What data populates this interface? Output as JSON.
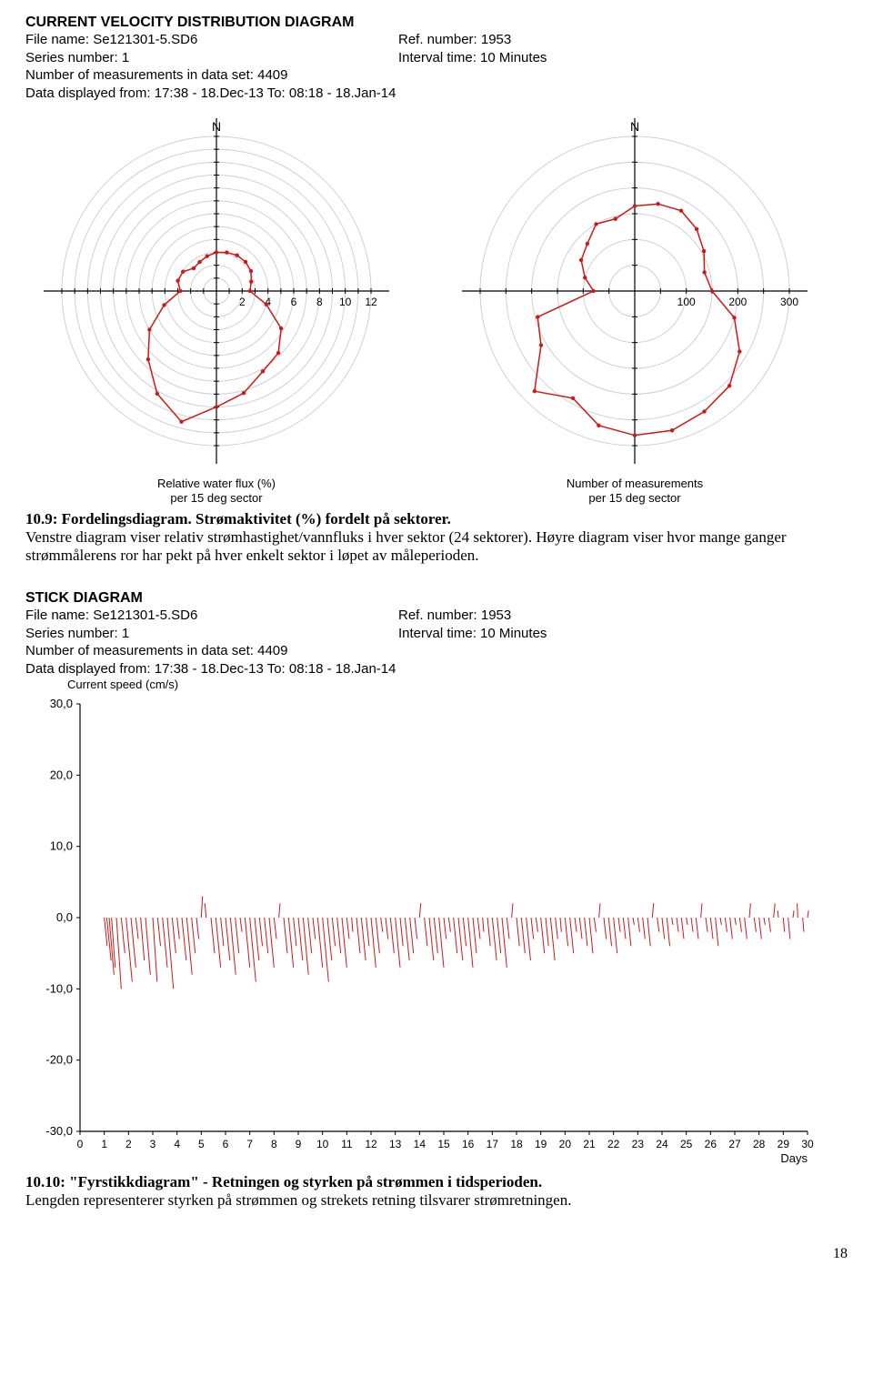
{
  "header1": {
    "title": "CURRENT VELOCITY DISTRIBUTION DIAGRAM",
    "file_label": "File name: ",
    "file_name": "Se121301-5.SD6",
    "series_label": "Series number: ",
    "series_number": "1",
    "meas_label": "Number of measurements in data set: ",
    "meas_count": "4409",
    "disp_label": "Data displayed from: ",
    "disp_from": "17:38 - 18.Dec-13",
    "disp_to_label": "   To: ",
    "disp_to": "08:18 - 18.Jan-14",
    "ref_label": "Ref. number: ",
    "ref_number": "1953",
    "interval_label": "Interval time: ",
    "interval": "10 Minutes"
  },
  "polar_left": {
    "type": "polar-line",
    "north_label": "N",
    "ring_color": "#d0d0d0",
    "axis_color": "#000000",
    "series_color": "#d01818",
    "marker_color": "#d01818",
    "background": "#ffffff",
    "ring_max": 12,
    "ring_step": 1,
    "tick_labels": [
      "2",
      "4",
      "6",
      "8",
      "10",
      "12"
    ],
    "caption_line1": "Relative water flux (%)",
    "caption_line2": "per 15 deg sector",
    "sectors_deg": [
      0,
      15,
      30,
      45,
      60,
      75,
      90,
      105,
      120,
      135,
      150,
      165,
      180,
      195,
      210,
      225,
      240,
      255,
      270,
      285,
      300,
      315,
      330,
      345
    ],
    "radii": [
      3.0,
      3.1,
      3.2,
      3.2,
      3.1,
      2.8,
      2.6,
      4.0,
      5.8,
      6.8,
      7.2,
      8.2,
      9.0,
      10.5,
      9.2,
      7.5,
      6.0,
      4.2,
      2.8,
      3.1,
      3.0,
      2.5,
      2.6,
      2.8
    ]
  },
  "polar_right": {
    "type": "polar-line",
    "north_label": "N",
    "ring_color": "#d0d0d0",
    "axis_color": "#000000",
    "series_color": "#d01818",
    "marker_color": "#d01818",
    "background": "#ffffff",
    "ring_max": 300,
    "ring_step": 50,
    "tick_labels": [
      "100",
      "200",
      "300"
    ],
    "tick_values": [
      100,
      200,
      300
    ],
    "caption_line1": "Number of measurements",
    "caption_line2": "per 15 deg sector",
    "sectors_deg": [
      0,
      15,
      30,
      45,
      60,
      75,
      90,
      105,
      120,
      135,
      150,
      165,
      180,
      195,
      210,
      225,
      240,
      255,
      270,
      285,
      300,
      315,
      330,
      345
    ],
    "radii": [
      165,
      175,
      180,
      170,
      155,
      140,
      150,
      200,
      235,
      260,
      270,
      280,
      280,
      270,
      240,
      275,
      210,
      195,
      80,
      100,
      120,
      130,
      150,
      145
    ]
  },
  "fig1": {
    "num": "10.9: ",
    "title": "Fordelingsdiagram. Strømaktivitet (%) fordelt på sektorer.",
    "body": "Venstre diagram viser relativ strømhastighet/vannfluks i hver sektor (24 sektorer). Høyre diagram viser hvor mange ganger strømmålerens ror har pekt på hver enkelt sektor i løpet av måleperioden."
  },
  "header2": {
    "title": "STICK DIAGRAM",
    "file_label": "File name: ",
    "file_name": "Se121301-5.SD6",
    "series_label": "Series number: ",
    "series_number": "1",
    "meas_label": "Number of measurements in data set: ",
    "meas_count": "4409",
    "disp_label": "Data displayed from: ",
    "disp_from": "17:38 - 18.Dec-13",
    "disp_to_label": "   To: ",
    "disp_to": "08:18 - 18.Jan-14",
    "ref_label": "Ref. number: ",
    "ref_number": "1953",
    "interval_label": "Interval time: ",
    "interval": "10 Minutes"
  },
  "stick": {
    "type": "stick",
    "ylabel": "Current speed (cm/s)",
    "x_axis_label": "Days",
    "y_ticks": [
      "30,0",
      "20,0",
      "10,0",
      "0,0",
      "-10,0",
      "-20,0",
      "-30,0"
    ],
    "y_values": [
      30,
      20,
      10,
      0,
      -10,
      -20,
      -30
    ],
    "x_ticks": [
      "0",
      "1",
      "2",
      "3",
      "4",
      "5",
      "6",
      "7",
      "8",
      "9",
      "10",
      "11",
      "12",
      "13",
      "14",
      "15",
      "16",
      "17",
      "18",
      "19",
      "20",
      "21",
      "22",
      "23",
      "24",
      "25",
      "26",
      "27",
      "28",
      "29",
      "30"
    ],
    "series_color": "#d01818",
    "axis_color": "#000000",
    "background": "#ffffff",
    "ylim": [
      -30,
      30
    ],
    "xlim": [
      0,
      30
    ],
    "sticks": [
      {
        "x": 1.0,
        "dx": 0.12,
        "dy": -4
      },
      {
        "x": 1.1,
        "dx": 0.18,
        "dy": -6
      },
      {
        "x": 1.2,
        "dx": 0.2,
        "dy": -8
      },
      {
        "x": 1.3,
        "dx": 0.15,
        "dy": -7
      },
      {
        "x": 1.5,
        "dx": 0.2,
        "dy": -10
      },
      {
        "x": 1.7,
        "dx": 0.15,
        "dy": -5
      },
      {
        "x": 1.9,
        "dx": 0.25,
        "dy": -9
      },
      {
        "x": 2.1,
        "dx": 0.2,
        "dy": -7
      },
      {
        "x": 2.3,
        "dx": 0.1,
        "dy": -3
      },
      {
        "x": 2.5,
        "dx": 0.15,
        "dy": -6
      },
      {
        "x": 2.7,
        "dx": 0.2,
        "dy": -8
      },
      {
        "x": 3.0,
        "dx": 0.18,
        "dy": -9
      },
      {
        "x": 3.2,
        "dx": 0.12,
        "dy": -4
      },
      {
        "x": 3.4,
        "dx": 0.2,
        "dy": -7
      },
      {
        "x": 3.6,
        "dx": 0.25,
        "dy": -10
      },
      {
        "x": 3.8,
        "dx": 0.15,
        "dy": -5
      },
      {
        "x": 4.0,
        "dx": 0.1,
        "dy": -3
      },
      {
        "x": 4.2,
        "dx": 0.18,
        "dy": -6
      },
      {
        "x": 4.4,
        "dx": 0.22,
        "dy": -8
      },
      {
        "x": 4.6,
        "dx": 0.15,
        "dy": -5
      },
      {
        "x": 4.8,
        "dx": 0.1,
        "dy": -3
      },
      {
        "x": 5.0,
        "dx": 0.05,
        "dy": 3
      },
      {
        "x": 5.2,
        "dx": -0.05,
        "dy": 2
      },
      {
        "x": 5.4,
        "dx": 0.15,
        "dy": -5
      },
      {
        "x": 5.6,
        "dx": 0.2,
        "dy": -7
      },
      {
        "x": 5.8,
        "dx": 0.12,
        "dy": -4
      },
      {
        "x": 6.0,
        "dx": 0.18,
        "dy": -6
      },
      {
        "x": 6.2,
        "dx": 0.22,
        "dy": -8
      },
      {
        "x": 6.4,
        "dx": 0.15,
        "dy": -5
      },
      {
        "x": 6.6,
        "dx": 0.08,
        "dy": -2
      },
      {
        "x": 6.8,
        "dx": 0.2,
        "dy": -7
      },
      {
        "x": 7.0,
        "dx": 0.25,
        "dy": -9
      },
      {
        "x": 7.2,
        "dx": 0.18,
        "dy": -6
      },
      {
        "x": 7.4,
        "dx": 0.12,
        "dy": -4
      },
      {
        "x": 7.6,
        "dx": 0.15,
        "dy": -5
      },
      {
        "x": 7.8,
        "dx": 0.2,
        "dy": -7
      },
      {
        "x": 8.0,
        "dx": 0.1,
        "dy": -3
      },
      {
        "x": 8.2,
        "dx": 0.05,
        "dy": 2
      },
      {
        "x": 8.4,
        "dx": 0.15,
        "dy": -5
      },
      {
        "x": 8.6,
        "dx": 0.2,
        "dy": -7
      },
      {
        "x": 8.8,
        "dx": 0.12,
        "dy": -4
      },
      {
        "x": 9.0,
        "dx": 0.18,
        "dy": -6
      },
      {
        "x": 9.2,
        "dx": 0.22,
        "dy": -8
      },
      {
        "x": 9.4,
        "dx": 0.15,
        "dy": -5
      },
      {
        "x": 9.6,
        "dx": 0.1,
        "dy": -3
      },
      {
        "x": 9.8,
        "dx": 0.2,
        "dy": -7
      },
      {
        "x": 10.0,
        "dx": 0.25,
        "dy": -9
      },
      {
        "x": 10.2,
        "dx": 0.18,
        "dy": -6
      },
      {
        "x": 10.4,
        "dx": 0.12,
        "dy": -4
      },
      {
        "x": 10.6,
        "dx": 0.15,
        "dy": -5
      },
      {
        "x": 10.8,
        "dx": 0.2,
        "dy": -7
      },
      {
        "x": 11.0,
        "dx": 0.1,
        "dy": -3
      },
      {
        "x": 11.2,
        "dx": 0.05,
        "dy": -2
      },
      {
        "x": 11.4,
        "dx": 0.15,
        "dy": -5
      },
      {
        "x": 11.6,
        "dx": 0.18,
        "dy": -6
      },
      {
        "x": 11.8,
        "dx": 0.12,
        "dy": -4
      },
      {
        "x": 12.0,
        "dx": 0.2,
        "dy": -7
      },
      {
        "x": 12.2,
        "dx": 0.15,
        "dy": -5
      },
      {
        "x": 12.4,
        "dx": 0.08,
        "dy": -2
      },
      {
        "x": 12.6,
        "dx": 0.1,
        "dy": -3
      },
      {
        "x": 12.8,
        "dx": 0.15,
        "dy": -5
      },
      {
        "x": 13.0,
        "dx": 0.2,
        "dy": -7
      },
      {
        "x": 13.2,
        "dx": 0.12,
        "dy": -4
      },
      {
        "x": 13.4,
        "dx": 0.18,
        "dy": -6
      },
      {
        "x": 13.6,
        "dx": 0.15,
        "dy": -5
      },
      {
        "x": 13.8,
        "dx": 0.1,
        "dy": -3
      },
      {
        "x": 14.0,
        "dx": 0.05,
        "dy": 2
      },
      {
        "x": 14.2,
        "dx": 0.12,
        "dy": -4
      },
      {
        "x": 14.4,
        "dx": 0.18,
        "dy": -6
      },
      {
        "x": 14.6,
        "dx": 0.15,
        "dy": -5
      },
      {
        "x": 14.8,
        "dx": 0.2,
        "dy": -7
      },
      {
        "x": 15.0,
        "dx": 0.1,
        "dy": -3
      },
      {
        "x": 15.2,
        "dx": 0.08,
        "dy": -2
      },
      {
        "x": 15.4,
        "dx": 0.15,
        "dy": -5
      },
      {
        "x": 15.6,
        "dx": 0.18,
        "dy": -6
      },
      {
        "x": 15.8,
        "dx": 0.12,
        "dy": -4
      },
      {
        "x": 16.0,
        "dx": 0.2,
        "dy": -7
      },
      {
        "x": 16.2,
        "dx": 0.15,
        "dy": -5
      },
      {
        "x": 16.4,
        "dx": 0.1,
        "dy": -3
      },
      {
        "x": 16.6,
        "dx": 0.05,
        "dy": -2
      },
      {
        "x": 16.8,
        "dx": 0.12,
        "dy": -4
      },
      {
        "x": 17.0,
        "dx": 0.18,
        "dy": -6
      },
      {
        "x": 17.2,
        "dx": 0.15,
        "dy": -5
      },
      {
        "x": 17.4,
        "dx": 0.2,
        "dy": -7
      },
      {
        "x": 17.6,
        "dx": 0.1,
        "dy": -3
      },
      {
        "x": 17.8,
        "dx": 0.05,
        "dy": 2
      },
      {
        "x": 18.0,
        "dx": 0.12,
        "dy": -4
      },
      {
        "x": 18.2,
        "dx": 0.15,
        "dy": -5
      },
      {
        "x": 18.4,
        "dx": 0.18,
        "dy": -6
      },
      {
        "x": 18.6,
        "dx": 0.1,
        "dy": -3
      },
      {
        "x": 18.8,
        "dx": 0.08,
        "dy": -2
      },
      {
        "x": 19.0,
        "dx": 0.15,
        "dy": -5
      },
      {
        "x": 19.2,
        "dx": 0.12,
        "dy": -4
      },
      {
        "x": 19.4,
        "dx": 0.18,
        "dy": -6
      },
      {
        "x": 19.6,
        "dx": 0.1,
        "dy": -3
      },
      {
        "x": 19.8,
        "dx": 0.05,
        "dy": -2
      },
      {
        "x": 20.0,
        "dx": 0.12,
        "dy": -4
      },
      {
        "x": 20.2,
        "dx": 0.15,
        "dy": -5
      },
      {
        "x": 20.4,
        "dx": 0.08,
        "dy": -2
      },
      {
        "x": 20.6,
        "dx": 0.1,
        "dy": -3
      },
      {
        "x": 20.8,
        "dx": 0.12,
        "dy": -4
      },
      {
        "x": 21.0,
        "dx": 0.15,
        "dy": -5
      },
      {
        "x": 21.2,
        "dx": 0.08,
        "dy": -2
      },
      {
        "x": 21.4,
        "dx": 0.05,
        "dy": 2
      },
      {
        "x": 21.6,
        "dx": 0.1,
        "dy": -3
      },
      {
        "x": 21.8,
        "dx": 0.12,
        "dy": -4
      },
      {
        "x": 22.0,
        "dx": 0.15,
        "dy": -5
      },
      {
        "x": 22.2,
        "dx": 0.08,
        "dy": -2
      },
      {
        "x": 22.4,
        "dx": 0.1,
        "dy": -3
      },
      {
        "x": 22.6,
        "dx": 0.12,
        "dy": -4
      },
      {
        "x": 22.8,
        "dx": 0.05,
        "dy": -1
      },
      {
        "x": 23.0,
        "dx": 0.08,
        "dy": -2
      },
      {
        "x": 23.2,
        "dx": 0.1,
        "dy": -3
      },
      {
        "x": 23.4,
        "dx": 0.12,
        "dy": -4
      },
      {
        "x": 23.6,
        "dx": 0.05,
        "dy": 2
      },
      {
        "x": 23.8,
        "dx": 0.08,
        "dy": -2
      },
      {
        "x": 24.0,
        "dx": 0.1,
        "dy": -3
      },
      {
        "x": 24.2,
        "dx": 0.12,
        "dy": -4
      },
      {
        "x": 24.4,
        "dx": 0.05,
        "dy": -1
      },
      {
        "x": 24.6,
        "dx": 0.08,
        "dy": -2
      },
      {
        "x": 24.8,
        "dx": 0.1,
        "dy": -3
      },
      {
        "x": 25.0,
        "dx": 0.05,
        "dy": -1
      },
      {
        "x": 25.2,
        "dx": 0.08,
        "dy": -2
      },
      {
        "x": 25.4,
        "dx": 0.1,
        "dy": -3
      },
      {
        "x": 25.6,
        "dx": 0.05,
        "dy": 2
      },
      {
        "x": 25.8,
        "dx": 0.08,
        "dy": -2
      },
      {
        "x": 26.0,
        "dx": 0.1,
        "dy": -3
      },
      {
        "x": 26.2,
        "dx": 0.12,
        "dy": -4
      },
      {
        "x": 26.4,
        "dx": 0.05,
        "dy": -1
      },
      {
        "x": 26.6,
        "dx": 0.08,
        "dy": -2
      },
      {
        "x": 26.8,
        "dx": 0.1,
        "dy": -3
      },
      {
        "x": 27.0,
        "dx": 0.05,
        "dy": -1
      },
      {
        "x": 27.2,
        "dx": 0.08,
        "dy": -2
      },
      {
        "x": 27.4,
        "dx": 0.1,
        "dy": -3
      },
      {
        "x": 27.6,
        "dx": 0.05,
        "dy": 2
      },
      {
        "x": 27.8,
        "dx": 0.08,
        "dy": -2
      },
      {
        "x": 28.0,
        "dx": 0.1,
        "dy": -3
      },
      {
        "x": 28.2,
        "dx": 0.05,
        "dy": -1
      },
      {
        "x": 28.4,
        "dx": 0.08,
        "dy": -2
      },
      {
        "x": 28.6,
        "dx": 0.06,
        "dy": 2
      },
      {
        "x": 28.8,
        "dx": -0.03,
        "dy": 1
      },
      {
        "x": 29.0,
        "dx": 0.05,
        "dy": -2
      },
      {
        "x": 29.2,
        "dx": 0.08,
        "dy": -3
      },
      {
        "x": 29.4,
        "dx": 0.04,
        "dy": 1
      },
      {
        "x": 29.6,
        "dx": -0.03,
        "dy": 2
      },
      {
        "x": 29.8,
        "dx": 0.05,
        "dy": -2
      },
      {
        "x": 30.0,
        "dx": 0.04,
        "dy": 1
      }
    ]
  },
  "fig2": {
    "num": "10.10: ",
    "title": "\"Fyrstikkdiagram\" - Retningen og styrken på strømmen i tidsperioden.",
    "body": "Lengden representerer styrken på strømmen og strekets retning tilsvarer strømretningen."
  },
  "page_number": "18"
}
